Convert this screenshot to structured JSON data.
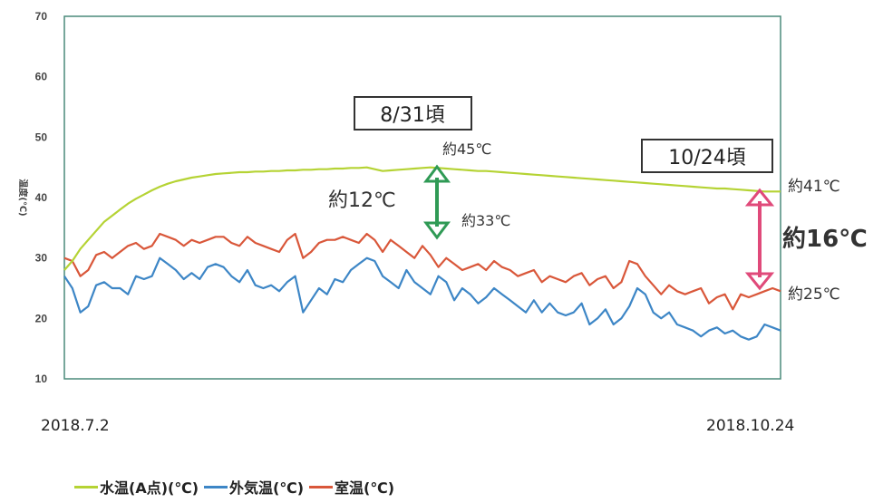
{
  "chart_data": {
    "type": "line",
    "ylabel": "温度(℃)",
    "ylim": [
      10,
      70
    ],
    "y_ticks": [
      "70",
      "60",
      "50",
      "40",
      "30",
      "20",
      "10"
    ],
    "x_start_label": "2018.7.2",
    "x_end_label": "2018.10.24",
    "grid": false,
    "legend_position": "bottom",
    "series": [
      {
        "name": "水温(A点)(℃)",
        "color": "#b5d334",
        "values": [
          28,
          29.5,
          31.5,
          33,
          34.5,
          36,
          37,
          38,
          39,
          39.8,
          40.5,
          41.2,
          41.8,
          42.3,
          42.7,
          43,
          43.3,
          43.5,
          43.7,
          43.9,
          44,
          44.1,
          44.2,
          44.2,
          44.3,
          44.3,
          44.4,
          44.4,
          44.5,
          44.5,
          44.6,
          44.6,
          44.7,
          44.7,
          44.8,
          44.8,
          44.9,
          44.9,
          45,
          44.7,
          44.4,
          44.5,
          44.6,
          44.7,
          44.8,
          44.9,
          45,
          44.9,
          44.8,
          44.7,
          44.6,
          44.5,
          44.4,
          44.4,
          44.3,
          44.2,
          44.1,
          44,
          43.9,
          43.8,
          43.7,
          43.6,
          43.5,
          43.4,
          43.3,
          43.2,
          43.1,
          43,
          42.9,
          42.8,
          42.7,
          42.6,
          42.5,
          42.4,
          42.3,
          42.2,
          42.1,
          42,
          41.9,
          41.8,
          41.7,
          41.6,
          41.5,
          41.5,
          41.4,
          41.3,
          41.2,
          41.1,
          41,
          41,
          41
        ]
      },
      {
        "name": "外気温(℃)",
        "color": "#3d86c6",
        "values": [
          27,
          25,
          21,
          22,
          25.5,
          26,
          25,
          25,
          24,
          27,
          26.5,
          27,
          30,
          29,
          28,
          26.5,
          27.5,
          26.5,
          28.5,
          29,
          28.5,
          27,
          26,
          28,
          25.5,
          25,
          25.5,
          24.5,
          26,
          27,
          21,
          23,
          25,
          24,
          26.5,
          26,
          28,
          29,
          30,
          29.5,
          27,
          26,
          25,
          28,
          26,
          25,
          24,
          27,
          26,
          23,
          25,
          24,
          22.5,
          23.5,
          25,
          24,
          23,
          22,
          21,
          23,
          21,
          22.5,
          21,
          20.5,
          21,
          22.5,
          19,
          20,
          21.5,
          19,
          20,
          22,
          25,
          24,
          21,
          20,
          21,
          19,
          18.5,
          18,
          17,
          18,
          18.5,
          17.5,
          18,
          17,
          16.5,
          17,
          19,
          18.5,
          18
        ]
      },
      {
        "name": "室温(℃)",
        "color": "#d9573a",
        "values": [
          30,
          29.5,
          27,
          28,
          30.5,
          31,
          30,
          31,
          32,
          32.5,
          31.5,
          32,
          34,
          33.5,
          33,
          32,
          33,
          32.5,
          33,
          33.5,
          33.5,
          32.5,
          32,
          33.5,
          32.5,
          32,
          31.5,
          31,
          33,
          34,
          30,
          31,
          32.5,
          33,
          33,
          33.5,
          33,
          32.5,
          34,
          33,
          31,
          33,
          32,
          31,
          30,
          32,
          30.5,
          28.5,
          30,
          29,
          28,
          28.5,
          29,
          28,
          29.5,
          28.5,
          28,
          27,
          27.5,
          28,
          26,
          27,
          26.5,
          26,
          27,
          27.5,
          25.5,
          26.5,
          27,
          25,
          26,
          29.5,
          29,
          27,
          25.5,
          24,
          25.5,
          24.5,
          24,
          24.5,
          25,
          22.5,
          23.5,
          24,
          21.5,
          24,
          23.5,
          24,
          24.5,
          25,
          24.5
        ]
      }
    ],
    "annotations": {
      "date_box_1": "8/31頃",
      "date_box_2": "10/24頃",
      "label_45": "約45℃",
      "label_33": "約33℃",
      "label_12": "約12℃",
      "label_41": "約41℃",
      "label_25": "約25℃",
      "label_16": "約16℃"
    }
  },
  "legend": {
    "items": [
      {
        "label": "水温(A点)(℃)",
        "color": "#b5d334"
      },
      {
        "label": "外気温(℃)",
        "color": "#3d86c6"
      },
      {
        "label": "室温(℃)",
        "color": "#d9573a"
      }
    ]
  }
}
